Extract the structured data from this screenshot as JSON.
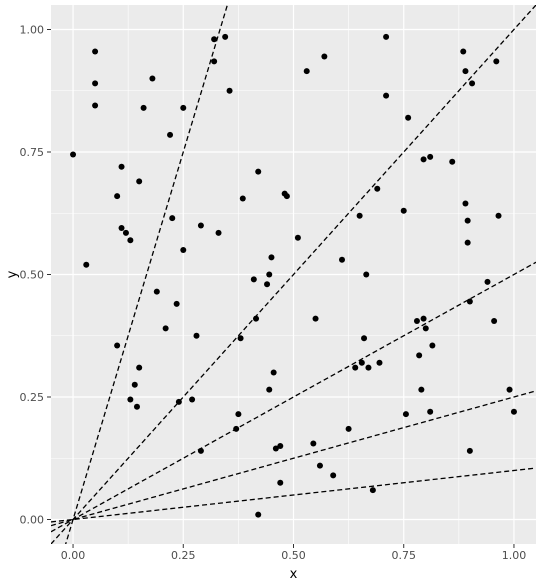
{
  "chart_data": {
    "type": "scatter",
    "title": "",
    "xlabel": "x",
    "ylabel": "y",
    "xlim": [
      -0.05,
      1.05
    ],
    "ylim": [
      -0.05,
      1.05
    ],
    "x_ticks": [
      0.0,
      0.25,
      0.5,
      0.75,
      1.0
    ],
    "x_tick_labels": [
      "0.00",
      "0.25",
      "0.50",
      "0.75",
      "1.00"
    ],
    "y_ticks": [
      0.0,
      0.25,
      0.5,
      0.75,
      1.0
    ],
    "y_tick_labels": [
      "0.00",
      "0.25",
      "0.50",
      "0.75",
      "1.00"
    ],
    "grid": true,
    "panel_background": "#ebebeb",
    "grid_color": "#ffffff",
    "point_color": "#000000",
    "reference_lines": [
      {
        "intercept": 0,
        "slope": 3.0,
        "style": "dashed"
      },
      {
        "intercept": 0,
        "slope": 1.0,
        "style": "dashed"
      },
      {
        "intercept": 0,
        "slope": 0.5,
        "style": "dashed"
      },
      {
        "intercept": 0,
        "slope": 0.25,
        "style": "dashed"
      },
      {
        "intercept": 0,
        "slope": 0.1,
        "style": "dashed"
      }
    ],
    "points": [
      {
        "x": 0.0,
        "y": 0.745
      },
      {
        "x": 0.03,
        "y": 0.52
      },
      {
        "x": 0.05,
        "y": 0.955
      },
      {
        "x": 0.05,
        "y": 0.89
      },
      {
        "x": 0.05,
        "y": 0.845
      },
      {
        "x": 0.1,
        "y": 0.66
      },
      {
        "x": 0.11,
        "y": 0.72
      },
      {
        "x": 0.11,
        "y": 0.595
      },
      {
        "x": 0.12,
        "y": 0.585
      },
      {
        "x": 0.13,
        "y": 0.57
      },
      {
        "x": 0.1,
        "y": 0.355
      },
      {
        "x": 0.13,
        "y": 0.245
      },
      {
        "x": 0.14,
        "y": 0.275
      },
      {
        "x": 0.145,
        "y": 0.23
      },
      {
        "x": 0.15,
        "y": 0.31
      },
      {
        "x": 0.15,
        "y": 0.69
      },
      {
        "x": 0.16,
        "y": 0.84
      },
      {
        "x": 0.18,
        "y": 0.9
      },
      {
        "x": 0.19,
        "y": 0.465
      },
      {
        "x": 0.21,
        "y": 0.39
      },
      {
        "x": 0.22,
        "y": 0.785
      },
      {
        "x": 0.225,
        "y": 0.615
      },
      {
        "x": 0.235,
        "y": 0.44
      },
      {
        "x": 0.24,
        "y": 0.24
      },
      {
        "x": 0.25,
        "y": 0.84
      },
      {
        "x": 0.25,
        "y": 0.55
      },
      {
        "x": 0.27,
        "y": 0.245
      },
      {
        "x": 0.28,
        "y": 0.375
      },
      {
        "x": 0.29,
        "y": 0.6
      },
      {
        "x": 0.29,
        "y": 0.14
      },
      {
        "x": 0.32,
        "y": 0.98
      },
      {
        "x": 0.32,
        "y": 0.935
      },
      {
        "x": 0.33,
        "y": 0.585
      },
      {
        "x": 0.345,
        "y": 0.985
      },
      {
        "x": 0.355,
        "y": 0.875
      },
      {
        "x": 0.37,
        "y": 0.185
      },
      {
        "x": 0.375,
        "y": 0.215
      },
      {
        "x": 0.38,
        "y": 0.37
      },
      {
        "x": 0.385,
        "y": 0.655
      },
      {
        "x": 0.41,
        "y": 0.49
      },
      {
        "x": 0.415,
        "y": 0.41
      },
      {
        "x": 0.42,
        "y": 0.71
      },
      {
        "x": 0.42,
        "y": 0.01
      },
      {
        "x": 0.44,
        "y": 0.48
      },
      {
        "x": 0.445,
        "y": 0.265
      },
      {
        "x": 0.445,
        "y": 0.5
      },
      {
        "x": 0.45,
        "y": 0.535
      },
      {
        "x": 0.455,
        "y": 0.3
      },
      {
        "x": 0.46,
        "y": 0.145
      },
      {
        "x": 0.47,
        "y": 0.15
      },
      {
        "x": 0.47,
        "y": 0.075
      },
      {
        "x": 0.48,
        "y": 0.665
      },
      {
        "x": 0.485,
        "y": 0.66
      },
      {
        "x": 0.51,
        "y": 0.575
      },
      {
        "x": 0.53,
        "y": 0.915
      },
      {
        "x": 0.545,
        "y": 0.155
      },
      {
        "x": 0.55,
        "y": 0.41
      },
      {
        "x": 0.56,
        "y": 0.11
      },
      {
        "x": 0.57,
        "y": 0.945
      },
      {
        "x": 0.59,
        "y": 0.09
      },
      {
        "x": 0.61,
        "y": 0.53
      },
      {
        "x": 0.625,
        "y": 0.185
      },
      {
        "x": 0.64,
        "y": 0.31
      },
      {
        "x": 0.65,
        "y": 0.62
      },
      {
        "x": 0.655,
        "y": 0.32
      },
      {
        "x": 0.66,
        "y": 0.37
      },
      {
        "x": 0.665,
        "y": 0.5
      },
      {
        "x": 0.67,
        "y": 0.31
      },
      {
        "x": 0.68,
        "y": 0.06
      },
      {
        "x": 0.69,
        "y": 0.675
      },
      {
        "x": 0.695,
        "y": 0.32
      },
      {
        "x": 0.71,
        "y": 0.985
      },
      {
        "x": 0.71,
        "y": 0.865
      },
      {
        "x": 0.75,
        "y": 0.63
      },
      {
        "x": 0.76,
        "y": 0.82
      },
      {
        "x": 0.755,
        "y": 0.215
      },
      {
        "x": 0.78,
        "y": 0.405
      },
      {
        "x": 0.785,
        "y": 0.335
      },
      {
        "x": 0.79,
        "y": 0.265
      },
      {
        "x": 0.795,
        "y": 0.735
      },
      {
        "x": 0.795,
        "y": 0.41
      },
      {
        "x": 0.8,
        "y": 0.39
      },
      {
        "x": 0.81,
        "y": 0.74
      },
      {
        "x": 0.81,
        "y": 0.22
      },
      {
        "x": 0.815,
        "y": 0.355
      },
      {
        "x": 0.86,
        "y": 0.73
      },
      {
        "x": 0.885,
        "y": 0.955
      },
      {
        "x": 0.89,
        "y": 0.915
      },
      {
        "x": 0.89,
        "y": 0.645
      },
      {
        "x": 0.895,
        "y": 0.61
      },
      {
        "x": 0.895,
        "y": 0.565
      },
      {
        "x": 0.9,
        "y": 0.445
      },
      {
        "x": 0.9,
        "y": 0.14
      },
      {
        "x": 0.905,
        "y": 0.89
      },
      {
        "x": 0.94,
        "y": 0.485
      },
      {
        "x": 0.955,
        "y": 0.405
      },
      {
        "x": 0.96,
        "y": 0.935
      },
      {
        "x": 0.965,
        "y": 0.62
      },
      {
        "x": 0.99,
        "y": 0.265
      },
      {
        "x": 1.0,
        "y": 0.22
      }
    ]
  }
}
